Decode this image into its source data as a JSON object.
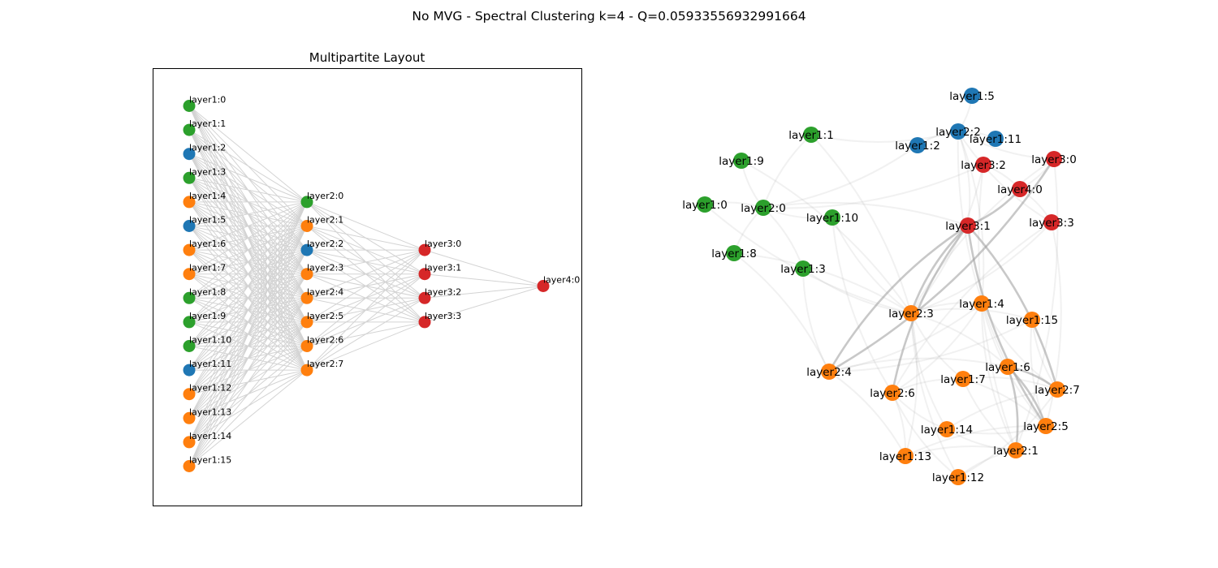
{
  "figure": {
    "suptitle": "No MVG - Spectral Clustering k=4 - Q=0.05933556932991664"
  },
  "colors": {
    "green": "#2ca02c",
    "blue": "#1f77b4",
    "orange": "#ff7f0e",
    "red": "#d62728",
    "edge_left": "#d3d3d3",
    "edge_right": "#9a9a9a"
  },
  "multipartite": {
    "title": "Multipartite Layout",
    "layers": [
      {
        "name": "layer1",
        "nodes": [
          {
            "id": "layer1:0",
            "label": "layer1:0",
            "cluster": "green"
          },
          {
            "id": "layer1:1",
            "label": "layer1:1",
            "cluster": "green"
          },
          {
            "id": "layer1:2",
            "label": "layer1:2",
            "cluster": "blue"
          },
          {
            "id": "layer1:3",
            "label": "layer1:3",
            "cluster": "green"
          },
          {
            "id": "layer1:4",
            "label": "layer1:4",
            "cluster": "orange"
          },
          {
            "id": "layer1:5",
            "label": "layer1:5",
            "cluster": "blue"
          },
          {
            "id": "layer1:6",
            "label": "layer1:6",
            "cluster": "orange"
          },
          {
            "id": "layer1:7",
            "label": "layer1:7",
            "cluster": "orange"
          },
          {
            "id": "layer1:8",
            "label": "layer1:8",
            "cluster": "green"
          },
          {
            "id": "layer1:9",
            "label": "layer1:9",
            "cluster": "green"
          },
          {
            "id": "layer1:10",
            "label": "layer1:10",
            "cluster": "green"
          },
          {
            "id": "layer1:11",
            "label": "layer1:11",
            "cluster": "blue"
          },
          {
            "id": "layer1:12",
            "label": "layer1:12",
            "cluster": "orange"
          },
          {
            "id": "layer1:13",
            "label": "layer1:13",
            "cluster": "orange"
          },
          {
            "id": "layer1:14",
            "label": "layer1:14",
            "cluster": "orange"
          },
          {
            "id": "layer1:15",
            "label": "layer1:15",
            "cluster": "orange"
          }
        ]
      },
      {
        "name": "layer2",
        "nodes": [
          {
            "id": "layer2:0",
            "label": "layer2:0",
            "cluster": "green"
          },
          {
            "id": "layer2:1",
            "label": "layer2:1",
            "cluster": "orange"
          },
          {
            "id": "layer2:2",
            "label": "layer2:2",
            "cluster": "blue"
          },
          {
            "id": "layer2:3",
            "label": "layer2:3",
            "cluster": "orange"
          },
          {
            "id": "layer2:4",
            "label": "layer2:4",
            "cluster": "orange"
          },
          {
            "id": "layer2:5",
            "label": "layer2:5",
            "cluster": "orange"
          },
          {
            "id": "layer2:6",
            "label": "layer2:6",
            "cluster": "orange"
          },
          {
            "id": "layer2:7",
            "label": "layer2:7",
            "cluster": "orange"
          }
        ]
      },
      {
        "name": "layer3",
        "nodes": [
          {
            "id": "layer3:0",
            "label": "layer3:0",
            "cluster": "red"
          },
          {
            "id": "layer3:1",
            "label": "layer3:1",
            "cluster": "red"
          },
          {
            "id": "layer3:2",
            "label": "layer3:2",
            "cluster": "red"
          },
          {
            "id": "layer3:3",
            "label": "layer3:3",
            "cluster": "red"
          }
        ]
      },
      {
        "name": "layer4",
        "nodes": [
          {
            "id": "layer4:0",
            "label": "layer4:0",
            "cluster": "red"
          }
        ]
      }
    ]
  },
  "spring": {
    "nodes": [
      {
        "id": "layer1:5",
        "label": "layer1:5",
        "cluster": "blue"
      },
      {
        "id": "layer2:2",
        "label": "layer2:2",
        "cluster": "blue"
      },
      {
        "id": "layer1:11",
        "label": "layer1:11",
        "cluster": "blue"
      },
      {
        "id": "layer1:2",
        "label": "layer1:2",
        "cluster": "blue"
      },
      {
        "id": "layer1:1",
        "label": "layer1:1",
        "cluster": "green"
      },
      {
        "id": "layer1:9",
        "label": "layer1:9",
        "cluster": "green"
      },
      {
        "id": "layer1:0",
        "label": "layer1:0",
        "cluster": "green"
      },
      {
        "id": "layer2:0",
        "label": "layer2:0",
        "cluster": "green"
      },
      {
        "id": "layer1:10",
        "label": "layer1:10",
        "cluster": "green"
      },
      {
        "id": "layer1:8",
        "label": "layer1:8",
        "cluster": "green"
      },
      {
        "id": "layer1:3",
        "label": "layer1:3",
        "cluster": "green"
      },
      {
        "id": "layer3:2",
        "label": "layer3:2",
        "cluster": "red"
      },
      {
        "id": "layer3:0",
        "label": "layer3:0",
        "cluster": "red"
      },
      {
        "id": "layer4:0",
        "label": "layer4:0",
        "cluster": "red"
      },
      {
        "id": "layer3:1",
        "label": "layer3:1",
        "cluster": "red"
      },
      {
        "id": "layer3:3",
        "label": "layer3:3",
        "cluster": "red"
      },
      {
        "id": "layer1:4",
        "label": "layer1:4",
        "cluster": "orange"
      },
      {
        "id": "layer2:3",
        "label": "layer2:3",
        "cluster": "orange"
      },
      {
        "id": "layer1:15",
        "label": "layer1:15",
        "cluster": "orange"
      },
      {
        "id": "layer1:6",
        "label": "layer1:6",
        "cluster": "orange"
      },
      {
        "id": "layer2:4",
        "label": "layer2:4",
        "cluster": "orange"
      },
      {
        "id": "layer1:7",
        "label": "layer1:7",
        "cluster": "orange"
      },
      {
        "id": "layer2:6",
        "label": "layer2:6",
        "cluster": "orange"
      },
      {
        "id": "layer2:7",
        "label": "layer2:7",
        "cluster": "orange"
      },
      {
        "id": "layer1:14",
        "label": "layer1:14",
        "cluster": "orange"
      },
      {
        "id": "layer2:5",
        "label": "layer2:5",
        "cluster": "orange"
      },
      {
        "id": "layer2:1",
        "label": "layer2:1",
        "cluster": "orange"
      },
      {
        "id": "layer1:13",
        "label": "layer1:13",
        "cluster": "orange"
      },
      {
        "id": "layer1:12",
        "label": "layer1:12",
        "cluster": "orange"
      }
    ]
  }
}
